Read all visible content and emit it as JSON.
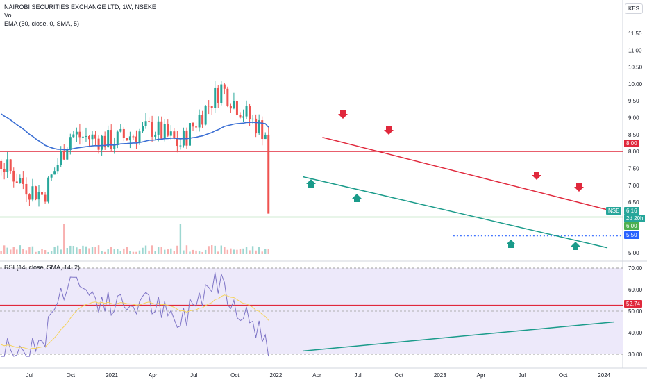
{
  "header": {
    "symbol_title": "NAIROBI SECURITIES EXCHANGE LTD, 1W, NSEKE",
    "volume_label": "Vol",
    "ema_label": "EMA (50, close, 0, SMA, 5)",
    "rsi_label": "RSI (14, close, SMA, 14, 2)",
    "currency": "KES"
  },
  "colors": {
    "up": "#26a69a",
    "down": "#ef5350",
    "ema": "#3b6fd4",
    "resistance": "#e0283c",
    "support": "#1a9b8a",
    "level_green": "#4caf50",
    "rsi_line": "#7e74c6",
    "rsi_ma": "#f5d35b",
    "rsi_bg": "#ede9fa"
  },
  "labels": {
    "price_symbol": "NSE",
    "price_value": "6.16",
    "countdown": "2d 20h",
    "level_8": "8.00",
    "level_6": "6.00",
    "level_55": "5.50",
    "rsi_value": "52.74"
  },
  "chart_data": [
    {
      "type": "candlestick",
      "title": "NAIROBI SECURITIES EXCHANGE LTD, 1W, NSEKE",
      "y_ticks": [
        "11.50",
        "11.00",
        "10.50",
        "10.00",
        "9.50",
        "9.00",
        "8.50",
        "8.00",
        "7.50",
        "7.00",
        "6.50",
        "6.00",
        "5.50",
        "5.00"
      ],
      "ylim": [
        4.95,
        11.75
      ],
      "x_ticks": [
        "Jul",
        "Oct",
        "2021",
        "Apr",
        "Jul",
        "Oct",
        "2022",
        "Apr",
        "Jul",
        "Oct",
        "2023",
        "Apr",
        "Jul",
        "Oct",
        "2024"
      ],
      "horizontal_levels": [
        {
          "value": 8.0,
          "color": "red"
        },
        {
          "value": 6.0,
          "color": "green"
        },
        {
          "value": 5.5,
          "color": "blue",
          "style": "dotted"
        }
      ],
      "trendlines": [
        {
          "name": "resistance",
          "from": [
            "2022-04",
            8.42
          ],
          "to": [
            "2023-12",
            6.25
          ]
        },
        {
          "name": "support",
          "from": [
            "2022-03",
            7.25
          ],
          "to": [
            "2023-12",
            5.15
          ]
        }
      ],
      "last_price": 6.16,
      "ema_period": 50,
      "volume_series": true
    },
    {
      "type": "line",
      "title": "RSI (14, close, SMA, 14, 2)",
      "y_ticks": [
        "70.00",
        "60.00",
        "50.00",
        "40.00",
        "30.00"
      ],
      "ylim": [
        26,
        72
      ],
      "bands": [
        30,
        70
      ],
      "horizontal_levels": [
        {
          "value": 52.74,
          "color": "red"
        }
      ],
      "trendlines": [
        {
          "name": "rsi-support",
          "from": [
            "2022-03",
            31.5
          ],
          "to": [
            "2023-12",
            45
          ]
        }
      ],
      "last_value": 52.74
    }
  ]
}
